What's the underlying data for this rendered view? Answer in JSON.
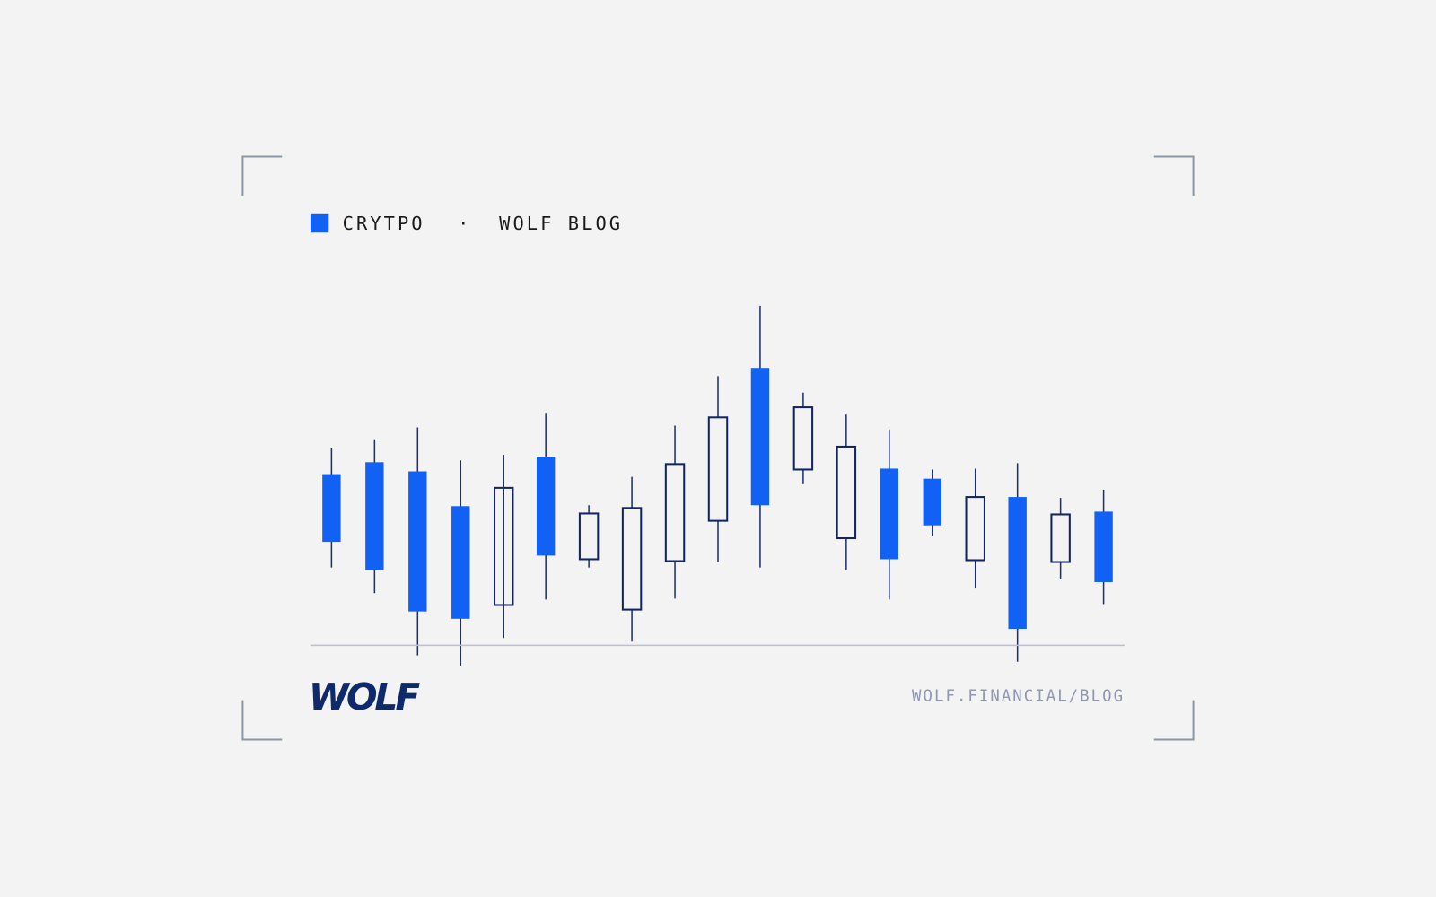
{
  "header": {
    "category": "CRYTPO",
    "separator": "·",
    "blog": "WOLF BLOG"
  },
  "footer": {
    "logo": "WOLF",
    "url": "WOLF.FINANCIAL/BLOG"
  }
}
